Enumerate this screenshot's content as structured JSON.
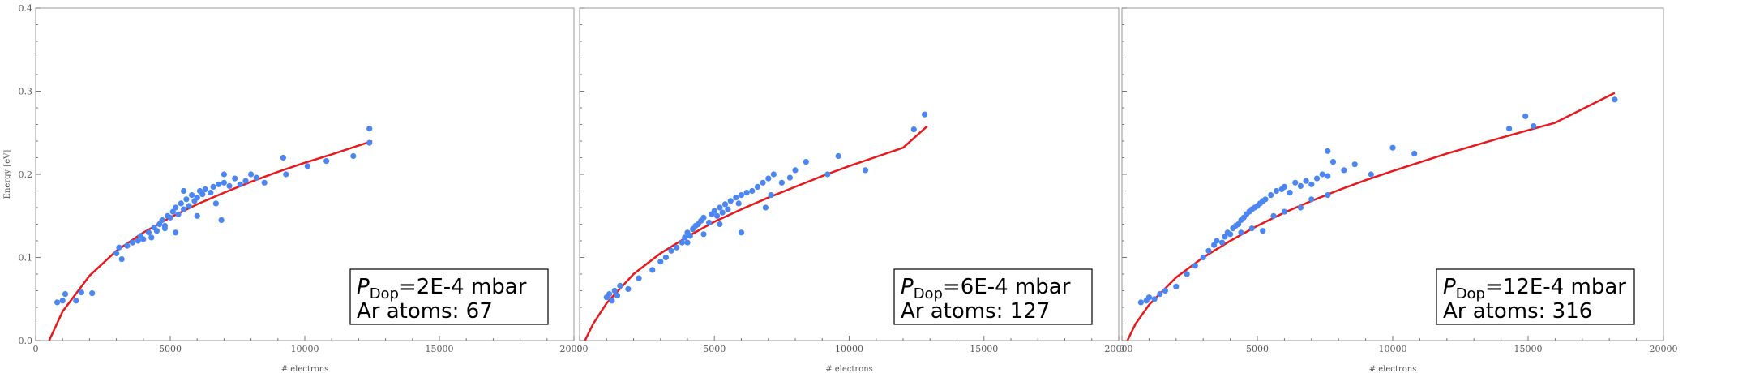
{
  "colors": {
    "points": "#4b86f2",
    "fit": "#e8181c",
    "frame": "#999999",
    "tick": "#777777"
  },
  "chart_data": [
    {
      "type": "scatter",
      "xlabel": "# electrons",
      "ylabel": "Energy [eV]",
      "xlim": [
        0,
        20000
      ],
      "ylim": [
        0,
        0.4
      ],
      "x_ticks": [
        "0",
        "5000",
        "10000",
        "15000",
        "20000"
      ],
      "x_tick_values": [
        0,
        5000,
        10000,
        15000,
        20000
      ],
      "y_ticks": [
        "0.0",
        "0.1",
        "0.2",
        "0.3",
        "0.4"
      ],
      "y_tick_values": [
        0,
        0.1,
        0.2,
        0.3,
        0.4
      ],
      "annotation": {
        "p_symbol": "P",
        "p_sub": "Dop",
        "p_value": "=2E-4 mbar",
        "atoms": "Ar atoms: 67"
      },
      "fit": {
        "x": [
          500,
          1000,
          2000,
          3000,
          4000,
          5000,
          6000,
          7000,
          8000,
          9000,
          10000,
          11000,
          12500
        ],
        "y": [
          0.0,
          0.035,
          0.078,
          0.108,
          0.13,
          0.148,
          0.164,
          0.178,
          0.191,
          0.203,
          0.214,
          0.224,
          0.24
        ]
      },
      "points": [
        [
          800,
          0.046
        ],
        [
          1000,
          0.048
        ],
        [
          1100,
          0.056
        ],
        [
          1500,
          0.048
        ],
        [
          1700,
          0.058
        ],
        [
          2100,
          0.057
        ],
        [
          3000,
          0.105
        ],
        [
          3100,
          0.112
        ],
        [
          3200,
          0.098
        ],
        [
          3400,
          0.114
        ],
        [
          3600,
          0.118
        ],
        [
          3800,
          0.12
        ],
        [
          3900,
          0.126
        ],
        [
          4000,
          0.122
        ],
        [
          4200,
          0.13
        ],
        [
          4300,
          0.124
        ],
        [
          4400,
          0.136
        ],
        [
          4500,
          0.132
        ],
        [
          4600,
          0.14
        ],
        [
          4700,
          0.145
        ],
        [
          4800,
          0.138
        ],
        [
          4900,
          0.15
        ],
        [
          5000,
          0.148
        ],
        [
          5100,
          0.155
        ],
        [
          5200,
          0.16
        ],
        [
          5300,
          0.152
        ],
        [
          5400,
          0.165
        ],
        [
          5500,
          0.158
        ],
        [
          5600,
          0.17
        ],
        [
          5700,
          0.162
        ],
        [
          5800,
          0.175
        ],
        [
          5900,
          0.168
        ],
        [
          6000,
          0.172
        ],
        [
          6100,
          0.18
        ],
        [
          6200,
          0.176
        ],
        [
          6300,
          0.182
        ],
        [
          6500,
          0.178
        ],
        [
          6600,
          0.185
        ],
        [
          6700,
          0.165
        ],
        [
          6800,
          0.188
        ],
        [
          7000,
          0.19
        ],
        [
          7200,
          0.186
        ],
        [
          7400,
          0.195
        ],
        [
          7600,
          0.188
        ],
        [
          7800,
          0.192
        ],
        [
          8000,
          0.2
        ],
        [
          8200,
          0.196
        ],
        [
          8500,
          0.19
        ],
        [
          4800,
          0.135
        ],
        [
          5200,
          0.13
        ],
        [
          6000,
          0.15
        ],
        [
          6900,
          0.145
        ],
        [
          5500,
          0.18
        ],
        [
          7000,
          0.2
        ],
        [
          9200,
          0.22
        ],
        [
          9300,
          0.2
        ],
        [
          10100,
          0.21
        ],
        [
          10800,
          0.216
        ],
        [
          11800,
          0.222
        ],
        [
          12400,
          0.255
        ],
        [
          12400,
          0.238
        ]
      ]
    },
    {
      "type": "scatter",
      "xlabel": "# electrons",
      "ylabel": "",
      "xlim": [
        0,
        20000
      ],
      "ylim": [
        0,
        0.4
      ],
      "x_ticks": [
        "0",
        "5000",
        "10000",
        "15000",
        "20000"
      ],
      "x_tick_values": [
        0,
        5000,
        10000,
        15000,
        20000
      ],
      "y_ticks": [],
      "y_tick_values": [
        0,
        0.1,
        0.2,
        0.3,
        0.4
      ],
      "annotation": {
        "p_symbol": "P",
        "p_sub": "Dop",
        "p_value": "=6E-4 mbar",
        "atoms": "Ar atoms: 127"
      },
      "fit": {
        "x": [
          200,
          500,
          1000,
          2000,
          3000,
          4000,
          5000,
          6000,
          7000,
          8000,
          9000,
          10000,
          11000,
          12000,
          12900
        ],
        "y": [
          0.0,
          0.02,
          0.045,
          0.08,
          0.105,
          0.125,
          0.143,
          0.158,
          0.172,
          0.185,
          0.198,
          0.21,
          0.221,
          0.232,
          0.258
        ]
      },
      "points": [
        [
          1000,
          0.052
        ],
        [
          1100,
          0.056
        ],
        [
          1200,
          0.048
        ],
        [
          1300,
          0.06
        ],
        [
          1400,
          0.054
        ],
        [
          1500,
          0.066
        ],
        [
          1800,
          0.062
        ],
        [
          2200,
          0.075
        ],
        [
          2700,
          0.085
        ],
        [
          3000,
          0.095
        ],
        [
          3200,
          0.1
        ],
        [
          3400,
          0.108
        ],
        [
          3600,
          0.112
        ],
        [
          3800,
          0.118
        ],
        [
          3900,
          0.124
        ],
        [
          4000,
          0.13
        ],
        [
          4100,
          0.126
        ],
        [
          4200,
          0.134
        ],
        [
          4300,
          0.138
        ],
        [
          4400,
          0.14
        ],
        [
          4500,
          0.144
        ],
        [
          4600,
          0.148
        ],
        [
          4800,
          0.142
        ],
        [
          4900,
          0.152
        ],
        [
          5000,
          0.156
        ],
        [
          5100,
          0.15
        ],
        [
          5200,
          0.16
        ],
        [
          5300,
          0.154
        ],
        [
          5400,
          0.164
        ],
        [
          5500,
          0.158
        ],
        [
          5600,
          0.168
        ],
        [
          5800,
          0.172
        ],
        [
          5900,
          0.165
        ],
        [
          6000,
          0.175
        ],
        [
          6200,
          0.178
        ],
        [
          6400,
          0.18
        ],
        [
          6600,
          0.185
        ],
        [
          6800,
          0.19
        ],
        [
          7000,
          0.195
        ],
        [
          7200,
          0.2
        ],
        [
          7500,
          0.19
        ],
        [
          7800,
          0.196
        ],
        [
          4000,
          0.118
        ],
        [
          4600,
          0.128
        ],
        [
          5200,
          0.14
        ],
        [
          6000,
          0.13
        ],
        [
          6900,
          0.16
        ],
        [
          7100,
          0.175
        ],
        [
          8000,
          0.205
        ],
        [
          8400,
          0.215
        ],
        [
          9200,
          0.2
        ],
        [
          9600,
          0.222
        ],
        [
          10600,
          0.205
        ],
        [
          12400,
          0.254
        ],
        [
          12800,
          0.272
        ]
      ]
    },
    {
      "type": "scatter",
      "xlabel": "# electrons",
      "ylabel": "",
      "xlim": [
        0,
        20000
      ],
      "ylim": [
        0,
        0.4
      ],
      "x_ticks": [
        "0",
        "5000",
        "10000",
        "15000",
        "20000"
      ],
      "x_tick_values": [
        0,
        5000,
        10000,
        15000,
        20000
      ],
      "y_ticks": [],
      "y_tick_values": [
        0,
        0.1,
        0.2,
        0.3,
        0.4
      ],
      "annotation": {
        "p_symbol": "P",
        "p_sub": "Dop",
        "p_value": "=12E-4 mbar",
        "atoms": "Ar atoms: 316"
      },
      "fit": {
        "x": [
          200,
          500,
          1000,
          2000,
          3000,
          4000,
          5000,
          6000,
          7000,
          8000,
          9000,
          10000,
          12000,
          14000,
          16000,
          18200
        ],
        "y": [
          0.0,
          0.02,
          0.043,
          0.076,
          0.1,
          0.12,
          0.138,
          0.154,
          0.168,
          0.181,
          0.193,
          0.204,
          0.225,
          0.244,
          0.262,
          0.298
        ]
      },
      "points": [
        [
          700,
          0.046
        ],
        [
          900,
          0.048
        ],
        [
          1000,
          0.052
        ],
        [
          1200,
          0.05
        ],
        [
          1400,
          0.056
        ],
        [
          1600,
          0.06
        ],
        [
          2000,
          0.065
        ],
        [
          2400,
          0.08
        ],
        [
          2700,
          0.09
        ],
        [
          3000,
          0.1
        ],
        [
          3200,
          0.108
        ],
        [
          3400,
          0.115
        ],
        [
          3500,
          0.12
        ],
        [
          3700,
          0.118
        ],
        [
          3800,
          0.125
        ],
        [
          3900,
          0.13
        ],
        [
          4000,
          0.128
        ],
        [
          4100,
          0.135
        ],
        [
          4200,
          0.138
        ],
        [
          4300,
          0.14
        ],
        [
          4400,
          0.145
        ],
        [
          4500,
          0.148
        ],
        [
          4600,
          0.152
        ],
        [
          4700,
          0.155
        ],
        [
          4800,
          0.158
        ],
        [
          4900,
          0.16
        ],
        [
          5000,
          0.162
        ],
        [
          5100,
          0.165
        ],
        [
          5200,
          0.168
        ],
        [
          5300,
          0.17
        ],
        [
          5500,
          0.175
        ],
        [
          5700,
          0.18
        ],
        [
          5900,
          0.182
        ],
        [
          6000,
          0.185
        ],
        [
          6200,
          0.178
        ],
        [
          6400,
          0.19
        ],
        [
          6600,
          0.186
        ],
        [
          6800,
          0.192
        ],
        [
          7000,
          0.188
        ],
        [
          7200,
          0.195
        ],
        [
          7400,
          0.2
        ],
        [
          7600,
          0.198
        ],
        [
          4400,
          0.13
        ],
        [
          4800,
          0.135
        ],
        [
          5200,
          0.132
        ],
        [
          5600,
          0.15
        ],
        [
          6000,
          0.155
        ],
        [
          6600,
          0.16
        ],
        [
          7000,
          0.17
        ],
        [
          7600,
          0.175
        ],
        [
          7800,
          0.215
        ],
        [
          7600,
          0.228
        ],
        [
          8200,
          0.205
        ],
        [
          8600,
          0.212
        ],
        [
          9200,
          0.2
        ],
        [
          10000,
          0.232
        ],
        [
          10800,
          0.225
        ],
        [
          14300,
          0.255
        ],
        [
          14900,
          0.27
        ],
        [
          15200,
          0.258
        ],
        [
          18200,
          0.29
        ]
      ]
    }
  ]
}
